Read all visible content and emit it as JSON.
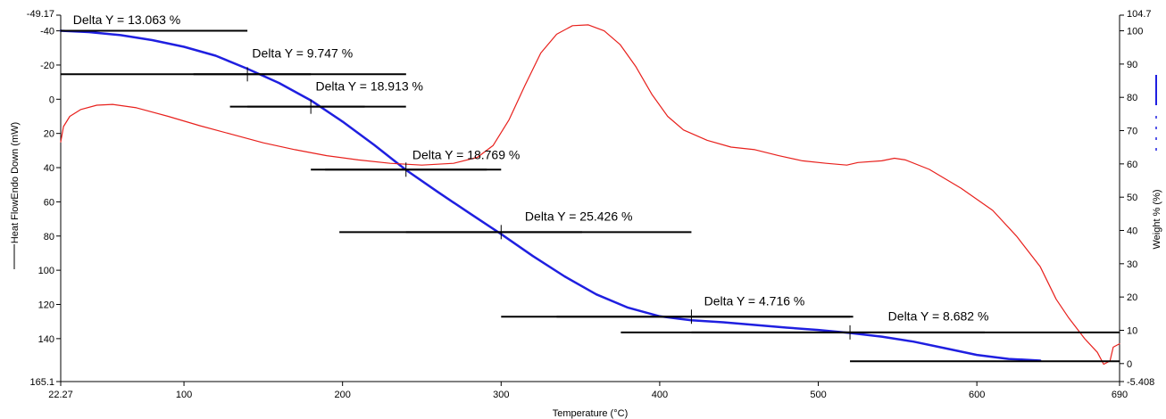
{
  "chart_data": {
    "type": "line",
    "xlabel": "Temperature (°C)",
    "ylabel_left": "Heat FlowEndo Down (mW)",
    "ylabel_right": "Weight % (%)",
    "xlim": [
      22.27,
      690
    ],
    "ylim_left": [
      -49.17,
      165.1
    ],
    "ylim_left_inverted": true,
    "ylim_right": [
      -5.408,
      104.7
    ],
    "x_ticks": [
      {
        "value": 22.27,
        "label": "22.27"
      },
      {
        "value": 100,
        "label": "100"
      },
      {
        "value": 200,
        "label": "200"
      },
      {
        "value": 300,
        "label": "300"
      },
      {
        "value": 400,
        "label": "400"
      },
      {
        "value": 500,
        "label": "500"
      },
      {
        "value": 600,
        "label": "600"
      },
      {
        "value": 690,
        "label": "690"
      }
    ],
    "y_left_ticks": [
      {
        "value": -49.17,
        "label": "-49.17"
      },
      {
        "value": -40,
        "label": "-40"
      },
      {
        "value": -20,
        "label": "-20"
      },
      {
        "value": 0,
        "label": "0"
      },
      {
        "value": 20,
        "label": "20"
      },
      {
        "value": 40,
        "label": "40"
      },
      {
        "value": 60,
        "label": "60"
      },
      {
        "value": 80,
        "label": "80"
      },
      {
        "value": 100,
        "label": "100"
      },
      {
        "value": 120,
        "label": "120"
      },
      {
        "value": 140,
        "label": "140"
      },
      {
        "value": 165.1,
        "label": "165.1"
      }
    ],
    "y_right_ticks": [
      {
        "value": 104.7,
        "label": "104.7"
      },
      {
        "value": 100,
        "label": "100"
      },
      {
        "value": 90,
        "label": "90"
      },
      {
        "value": 80,
        "label": "80"
      },
      {
        "value": 70,
        "label": "70"
      },
      {
        "value": 60,
        "label": "60"
      },
      {
        "value": 50,
        "label": "50"
      },
      {
        "value": 40,
        "label": "40"
      },
      {
        "value": 30,
        "label": "30"
      },
      {
        "value": 20,
        "label": "20"
      },
      {
        "value": 10,
        "label": "10"
      },
      {
        "value": 0,
        "label": "0"
      },
      {
        "value": -5.408,
        "label": "-5.408"
      }
    ],
    "series": [
      {
        "axis": "right",
        "color": "#1f1fe0",
        "points": [
          [
            22.27,
            100
          ],
          [
            40,
            99.6
          ],
          [
            60,
            98.7
          ],
          [
            80,
            97.2
          ],
          [
            100,
            95.2
          ],
          [
            120,
            92.5
          ],
          [
            140,
            88.6
          ],
          [
            160,
            84.3
          ],
          [
            180,
            79.1
          ],
          [
            200,
            72.7
          ],
          [
            220,
            65.7
          ],
          [
            240,
            58.2
          ],
          [
            260,
            51.6
          ],
          [
            280,
            45.2
          ],
          [
            300,
            38.9
          ],
          [
            320,
            32.3
          ],
          [
            340,
            26.2
          ],
          [
            360,
            20.8
          ],
          [
            380,
            16.8
          ],
          [
            400,
            14.2
          ],
          [
            420,
            13.0
          ],
          [
            440,
            12.4
          ],
          [
            460,
            11.6
          ],
          [
            480,
            10.8
          ],
          [
            500,
            10.1
          ],
          [
            520,
            9.2
          ],
          [
            540,
            8.1
          ],
          [
            560,
            6.6
          ],
          [
            580,
            4.6
          ],
          [
            600,
            2.6
          ],
          [
            620,
            1.4
          ],
          [
            640,
            0.9
          ]
        ]
      },
      {
        "axis": "left",
        "color": "#e8201c",
        "points": [
          [
            22.27,
            25
          ],
          [
            24,
            16
          ],
          [
            28,
            10
          ],
          [
            35,
            6
          ],
          [
            45,
            3.5
          ],
          [
            55,
            3
          ],
          [
            70,
            5
          ],
          [
            90,
            10
          ],
          [
            110,
            15.5
          ],
          [
            130,
            20.5
          ],
          [
            150,
            25.5
          ],
          [
            170,
            29.5
          ],
          [
            190,
            33
          ],
          [
            210,
            35.5
          ],
          [
            230,
            37.5
          ],
          [
            250,
            38.5
          ],
          [
            270,
            37.5
          ],
          [
            285,
            34
          ],
          [
            295,
            27
          ],
          [
            305,
            12
          ],
          [
            315,
            -8
          ],
          [
            325,
            -27
          ],
          [
            335,
            -38
          ],
          [
            345,
            -43
          ],
          [
            355,
            -43.5
          ],
          [
            365,
            -40
          ],
          [
            375,
            -32
          ],
          [
            385,
            -19
          ],
          [
            395,
            -3
          ],
          [
            405,
            10
          ],
          [
            415,
            18
          ],
          [
            430,
            24
          ],
          [
            445,
            28
          ],
          [
            460,
            29.5
          ],
          [
            475,
            33
          ],
          [
            490,
            36
          ],
          [
            505,
            37.5
          ],
          [
            518,
            38.5
          ],
          [
            525,
            37
          ],
          [
            540,
            36
          ],
          [
            548,
            34.5
          ],
          [
            555,
            35.5
          ],
          [
            570,
            41
          ],
          [
            590,
            52
          ],
          [
            610,
            65
          ],
          [
            625,
            80
          ],
          [
            640,
            98
          ],
          [
            650,
            117
          ],
          [
            658,
            128
          ],
          [
            668,
            140
          ],
          [
            676,
            148
          ],
          [
            680,
            155
          ],
          [
            684,
            153
          ],
          [
            686,
            145
          ],
          [
            690,
            143
          ]
        ]
      }
    ],
    "annotations": [
      {
        "label": "Delta Y = 13.063 %",
        "x1": 22.27,
        "x2": 140,
        "y_start": 100,
        "y_end": 86.937,
        "label_x": 30,
        "label_y": 102
      },
      {
        "label": "Delta Y = 9.747 %",
        "x1": 140,
        "x2": 180,
        "y_start": 86.937,
        "y_end": 77.19,
        "label_x": 143,
        "label_y": 92
      },
      {
        "label": "Delta Y = 18.913 %",
        "x1": 180,
        "x2": 240,
        "y_start": 77.19,
        "y_end": 58.277,
        "label_x": 183,
        "label_y": 82
      },
      {
        "label": "Delta Y = 18.769 %",
        "x1": 240,
        "x2": 300,
        "y_start": 58.277,
        "y_end": 39.508,
        "label_x": 244,
        "label_y": 61.5
      },
      {
        "label": "Delta Y = 25.426 %",
        "x1": 300,
        "x2": 420,
        "y_start": 39.508,
        "y_end": 14.082,
        "label_x": 315,
        "label_y": 43
      },
      {
        "label": "Delta Y = 4.716 %",
        "x1": 420,
        "x2": 520,
        "y_start": 14.082,
        "y_end": 9.366,
        "label_x": 428,
        "label_y": 17.5
      },
      {
        "label": "Delta Y = 8.682 %",
        "x1": 520,
        "x2": 690,
        "y_start": 9.366,
        "y_end": 0.684,
        "label_x": 544,
        "label_y": 13
      }
    ]
  }
}
